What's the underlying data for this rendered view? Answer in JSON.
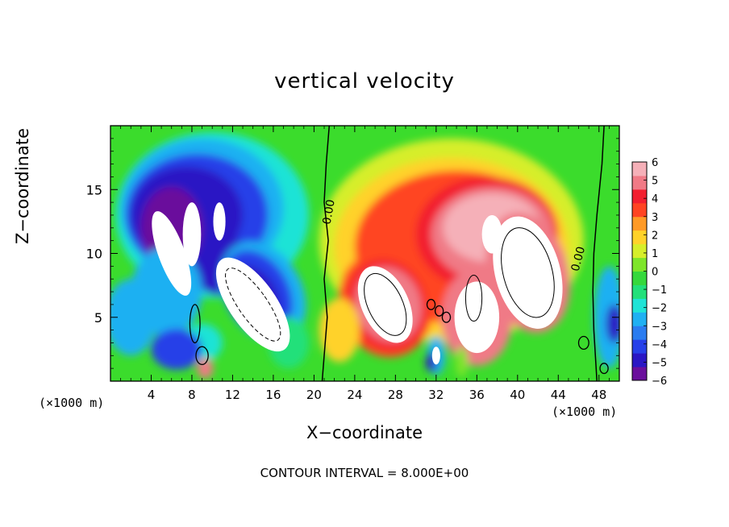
{
  "chart_data": {
    "type": "heatmap",
    "title": "vertical velocity",
    "xlabel": "X−coordinate",
    "ylabel": "Z−coordinate",
    "x_unit": "(×1000 m)",
    "caption": "CONTOUR INTERVAL = 8.000E+00",
    "xlim": [
      0,
      50
    ],
    "ylim": [
      0,
      20
    ],
    "x_ticks": [
      4,
      8,
      12,
      16,
      20,
      24,
      28,
      32,
      36,
      40,
      44,
      48
    ],
    "y_ticks": [
      5,
      10,
      15
    ],
    "colorbar": {
      "ticks": [
        6,
        5,
        4,
        3,
        2,
        1,
        0,
        -1,
        -2,
        -3,
        -4,
        -5,
        -6
      ],
      "range": [
        -6,
        6
      ],
      "colors": [
        "#6a0e9c",
        "#2a16c4",
        "#2640e8",
        "#2a7cf0",
        "#1fb0f2",
        "#1fe3d6",
        "#22e07a",
        "#35d83c",
        "#7ee52a",
        "#d6ee2a",
        "#ffd22a",
        "#ff9a26",
        "#ff4422",
        "#f21f2f",
        "#f07a86",
        "#f5b0b8"
      ]
    },
    "contour_labels": [
      "0.00",
      "0.00"
    ],
    "features": [
      {
        "kind": "downdraft",
        "x": 6,
        "z": 11,
        "value": -7
      },
      {
        "kind": "downdraft",
        "x": 14,
        "z": 6,
        "value": -8
      },
      {
        "kind": "updraft",
        "x": 27,
        "z": 6,
        "value": 8
      },
      {
        "kind": "updraft",
        "x": 41,
        "z": 8.5,
        "value": 10
      },
      {
        "kind": "updraft",
        "x": 36,
        "z": 5,
        "value": 8
      },
      {
        "kind": "updraft",
        "x": 37,
        "z": 12.5,
        "value": 7
      }
    ]
  }
}
